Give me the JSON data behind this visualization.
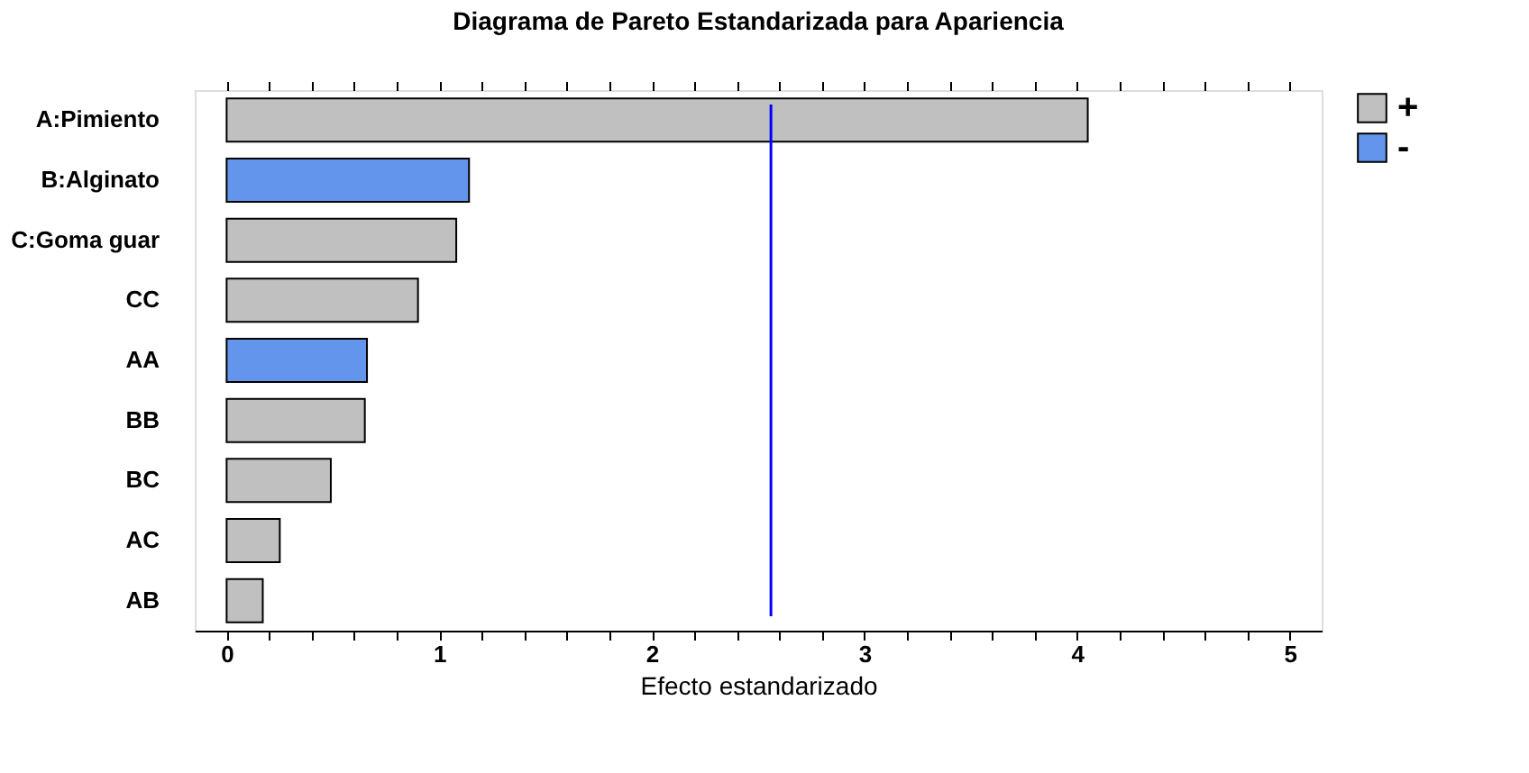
{
  "chart_data": {
    "type": "bar",
    "orientation": "horizontal",
    "title": "Diagrama de Pareto Estandarizada para Apariencia",
    "xlabel": "Efecto estandarizado",
    "categories": [
      "A:Pimiento",
      "B:Alginato",
      "C:Goma guar",
      "CC",
      "AA",
      "BB",
      "BC",
      "AC",
      "AB"
    ],
    "series": [
      {
        "name": "+",
        "color": "#c0c0c0",
        "values": [
          4.05,
          null,
          1.08,
          0.9,
          null,
          0.65,
          0.49,
          0.25,
          0.17
        ]
      },
      {
        "name": "-",
        "color": "#6495ed",
        "values": [
          null,
          1.14,
          null,
          null,
          0.66,
          null,
          null,
          null,
          null
        ]
      }
    ],
    "xlim": [
      -0.15,
      5.15
    ],
    "xticks": [
      0,
      {
        "value": 0.2,
        "label": null
      },
      {
        "value": 0.4,
        "label": null
      },
      {
        "value": 0.6,
        "label": null
      },
      {
        "value": 0.8,
        "label": null
      },
      1,
      {
        "value": 1.2,
        "label": null
      },
      {
        "value": 1.4,
        "label": null
      },
      {
        "value": 1.6,
        "label": null
      },
      {
        "value": 1.8,
        "label": null
      },
      2,
      {
        "value": 2.2,
        "label": null
      },
      {
        "value": 2.4,
        "label": null
      },
      {
        "value": 2.6,
        "label": null
      },
      {
        "value": 2.8,
        "label": null
      },
      3,
      {
        "value": 3.2,
        "label": null
      },
      {
        "value": 3.4,
        "label": null
      },
      {
        "value": 3.6,
        "label": null
      },
      {
        "value": 3.8,
        "label": null
      },
      4,
      {
        "value": 4.2,
        "label": null
      },
      {
        "value": 4.4,
        "label": null
      },
      {
        "value": 4.6,
        "label": null
      },
      {
        "value": 4.8,
        "label": null
      },
      5
    ],
    "ref_lines": [
      {
        "axis": "x",
        "value": 2.56,
        "color": "#0000ff"
      }
    ],
    "legend": "right",
    "grid": false
  }
}
